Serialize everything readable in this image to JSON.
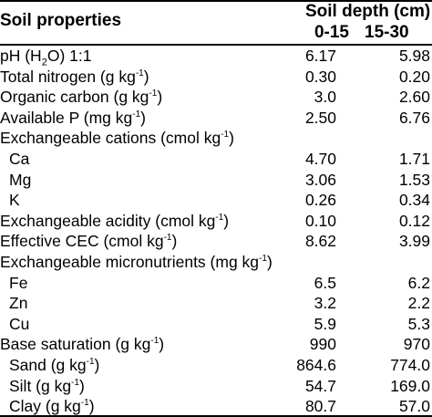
{
  "table": {
    "header": {
      "properties": "Soil properties",
      "depth": "Soil depth (cm)",
      "col1": "0-15",
      "col2": "15-30"
    },
    "rows": [
      {
        "label": "pH (H",
        "label_sub": "2",
        "label_tail": "O) 1:1",
        "sup": "",
        "after": "",
        "v1": "6.17",
        "v2": "5.98",
        "indent": false
      },
      {
        "label": "Total nitrogen (g kg",
        "label_sub": "",
        "label_tail": "",
        "sup": "-1",
        "after": ")",
        "v1": "0.30",
        "v2": "0.20",
        "indent": false
      },
      {
        "label": "Organic carbon (g kg",
        "label_sub": "",
        "label_tail": "",
        "sup": "-1",
        "after": ")",
        "v1": "3.0",
        "v2": "2.60",
        "indent": false
      },
      {
        "label": "Available P (mg kg",
        "label_sub": "",
        "label_tail": "",
        "sup": "-1",
        "after": ")",
        "v1": "2.50",
        "v2": "6.76",
        "indent": false
      },
      {
        "label": "Exchangeable cations (cmol kg",
        "label_sub": "",
        "label_tail": "",
        "sup": "-1",
        "after": ")",
        "v1": "",
        "v2": "",
        "indent": false
      },
      {
        "label": "Ca",
        "label_sub": "",
        "label_tail": "",
        "sup": "",
        "after": "",
        "v1": "4.70",
        "v2": "1.71",
        "indent": true
      },
      {
        "label": "Mg",
        "label_sub": "",
        "label_tail": "",
        "sup": "",
        "after": "",
        "v1": "3.06",
        "v2": "1.53",
        "indent": true
      },
      {
        "label": "K",
        "label_sub": "",
        "label_tail": "",
        "sup": "",
        "after": "",
        "v1": "0.26",
        "v2": "0.34",
        "indent": true
      },
      {
        "label": "Exchangeable acidity (cmol kg",
        "label_sub": "",
        "label_tail": "",
        "sup": "-1",
        "after": ")",
        "v1": "0.10",
        "v2": "0.12",
        "indent": false
      },
      {
        "label": "Effective CEC (cmol kg",
        "label_sub": "",
        "label_tail": "",
        "sup": "-1",
        "after": ")",
        "v1": "8.62",
        "v2": "3.99",
        "indent": false
      },
      {
        "label": "Exchangeable micronutrients (mg kg",
        "label_sub": "",
        "label_tail": "",
        "sup": "-1",
        "after": ")",
        "v1": "",
        "v2": "",
        "indent": false
      },
      {
        "label": "Fe",
        "label_sub": "",
        "label_tail": "",
        "sup": "",
        "after": "",
        "v1": "6.5",
        "v2": "6.2",
        "indent": true
      },
      {
        "label": "Zn",
        "label_sub": "",
        "label_tail": "",
        "sup": "",
        "after": "",
        "v1": "3.2",
        "v2": "2.2",
        "indent": true
      },
      {
        "label": "Cu",
        "label_sub": "",
        "label_tail": "",
        "sup": "",
        "after": "",
        "v1": "5.9",
        "v2": "5.3",
        "indent": true
      },
      {
        "label": "Base saturation (g kg",
        "label_sub": "",
        "label_tail": "",
        "sup": "-1",
        "after": ")",
        "v1": "990",
        "v2": "970",
        "indent": false
      },
      {
        "label": "Sand (g kg",
        "label_sub": "",
        "label_tail": "",
        "sup": "-1",
        "after": ")",
        "v1": "864.6",
        "v2": "774.0",
        "indent": true
      },
      {
        "label": "Silt (g kg",
        "label_sub": "",
        "label_tail": "",
        "sup": "-1",
        "after": ")",
        "v1": "54.7",
        "v2": "169.0",
        "indent": true
      },
      {
        "label": "Clay (g kg",
        "label_sub": "",
        "label_tail": "",
        "sup": "-1",
        "after": ")",
        "v1": "80.7",
        "v2": "57.0",
        "indent": true
      }
    ]
  }
}
